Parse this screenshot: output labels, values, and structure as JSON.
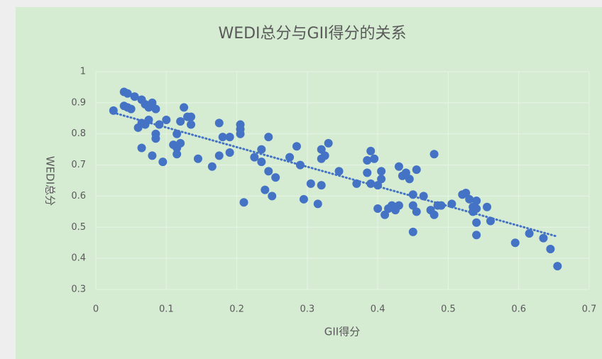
{
  "chart_data": {
    "type": "scatter",
    "title": "WEDI总分与GII得分的关系",
    "x_label": "GII得分",
    "y_label": "WEDI总分",
    "xlim": [
      0,
      0.7
    ],
    "xticks": [
      0,
      0.1,
      0.2,
      0.3,
      0.4,
      0.5,
      0.6,
      0.7
    ],
    "ylim": [
      0.3,
      1
    ],
    "yticks": [
      0.3,
      0.4,
      0.5,
      0.6,
      0.7,
      0.8,
      0.9,
      1
    ],
    "grid": true,
    "color": "#4472c4",
    "trendline": {
      "x": [
        0.025,
        0.655
      ],
      "y": [
        0.868,
        0.47
      ],
      "color": "#4472c4"
    },
    "x": [
      0.025,
      0.04,
      0.045,
      0.04,
      0.045,
      0.05,
      0.055,
      0.065,
      0.07,
      0.075,
      0.08,
      0.085,
      0.06,
      0.065,
      0.07,
      0.075,
      0.09,
      0.1,
      0.085,
      0.085,
      0.065,
      0.08,
      0.095,
      0.11,
      0.115,
      0.12,
      0.115,
      0.115,
      0.12,
      0.125,
      0.13,
      0.135,
      0.135,
      0.145,
      0.165,
      0.175,
      0.175,
      0.18,
      0.19,
      0.19,
      0.205,
      0.205,
      0.205,
      0.21,
      0.225,
      0.235,
      0.235,
      0.24,
      0.245,
      0.245,
      0.25,
      0.255,
      0.275,
      0.285,
      0.29,
      0.295,
      0.305,
      0.315,
      0.32,
      0.32,
      0.32,
      0.325,
      0.33,
      0.345,
      0.37,
      0.385,
      0.385,
      0.39,
      0.39,
      0.395,
      0.4,
      0.4,
      0.405,
      0.405,
      0.41,
      0.415,
      0.42,
      0.425,
      0.43,
      0.43,
      0.435,
      0.44,
      0.445,
      0.45,
      0.45,
      0.45,
      0.455,
      0.455,
      0.465,
      0.475,
      0.48,
      0.48,
      0.485,
      0.49,
      0.505,
      0.52,
      0.525,
      0.53,
      0.535,
      0.535,
      0.54,
      0.54,
      0.54,
      0.54,
      0.555,
      0.56,
      0.595,
      0.615,
      0.635,
      0.645,
      0.655
    ],
    "values": [
      0.875,
      0.935,
      0.93,
      0.89,
      0.885,
      0.88,
      0.92,
      0.91,
      0.895,
      0.885,
      0.9,
      0.88,
      0.82,
      0.835,
      0.83,
      0.845,
      0.83,
      0.845,
      0.8,
      0.785,
      0.755,
      0.73,
      0.71,
      0.765,
      0.755,
      0.77,
      0.8,
      0.735,
      0.84,
      0.885,
      0.855,
      0.855,
      0.83,
      0.72,
      0.695,
      0.73,
      0.835,
      0.79,
      0.79,
      0.74,
      0.83,
      0.815,
      0.8,
      0.58,
      0.725,
      0.75,
      0.71,
      0.62,
      0.68,
      0.79,
      0.6,
      0.66,
      0.725,
      0.76,
      0.7,
      0.59,
      0.64,
      0.575,
      0.635,
      0.72,
      0.75,
      0.73,
      0.77,
      0.68,
      0.64,
      0.715,
      0.675,
      0.745,
      0.64,
      0.72,
      0.56,
      0.635,
      0.655,
      0.68,
      0.54,
      0.56,
      0.57,
      0.555,
      0.57,
      0.695,
      0.665,
      0.675,
      0.655,
      0.57,
      0.485,
      0.605,
      0.55,
      0.685,
      0.6,
      0.555,
      0.735,
      0.54,
      0.57,
      0.57,
      0.575,
      0.605,
      0.61,
      0.59,
      0.565,
      0.55,
      0.515,
      0.475,
      0.585,
      0.56,
      0.565,
      0.52,
      0.45,
      0.48,
      0.465,
      0.43,
      0.375
    ]
  }
}
